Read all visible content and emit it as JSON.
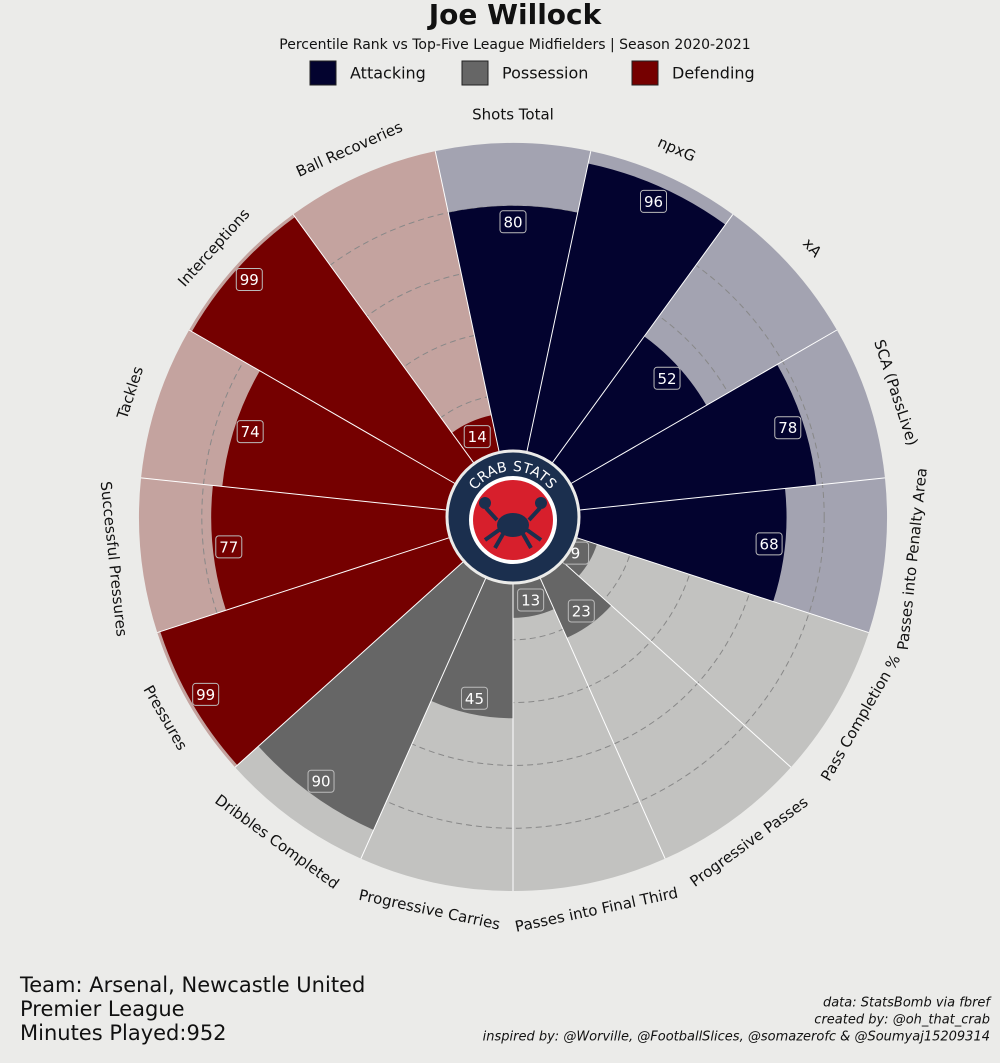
{
  "chart_data": {
    "type": "radial_bar",
    "title": "Joe Willock",
    "subtitle": "Percentile Rank vs Top-Five League Midfielders | Season 2020-2021",
    "rlim": [
      0,
      100
    ],
    "rticks": [
      20,
      40,
      60,
      80
    ],
    "grid": true,
    "series": [
      {
        "name": "Attacking",
        "color": "#03032f",
        "background": "#a3a3b1",
        "categories": [
          "Shots Total",
          "npxG",
          "xA",
          "SCA (PassLive)",
          "Passes into Penalty Area"
        ],
        "values": [
          80,
          96,
          52,
          78,
          68
        ]
      },
      {
        "name": "Possession",
        "color": "#666666",
        "background": "#c2c2c0",
        "categories": [
          "Pass Completion %",
          "Progressive Passes",
          "Passes into Final Third",
          "Progressive Carries",
          "Dribbles Completed"
        ],
        "values": [
          9,
          23,
          13,
          45,
          90
        ]
      },
      {
        "name": "Defending",
        "color": "#750000",
        "background": "#c4a39f",
        "categories": [
          "Pressures",
          "Successful Pressures",
          "Tackles",
          "Interceptions",
          "Ball Recoveries"
        ],
        "values": [
          99,
          77,
          74,
          99,
          14
        ]
      }
    ],
    "logo_text": "CRAB STATS",
    "footer": [
      "Team: Arsenal, Newcastle United",
      "Premier League",
      "Minutes Played:952"
    ],
    "credits": [
      "data: StatsBomb via fbref",
      "created by: @oh_that_crab",
      "inspired by: @Worville, @FootballSlices, @somazerofc & @Soumyaj15209314"
    ]
  }
}
